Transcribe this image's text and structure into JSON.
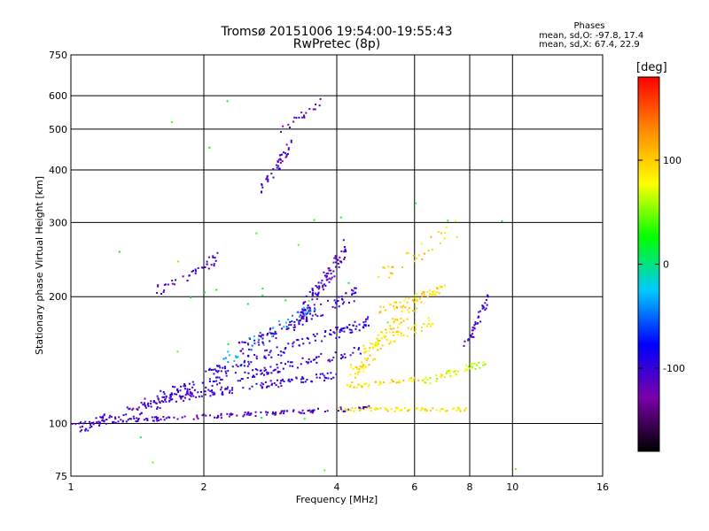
{
  "chart_data": {
    "type": "scatter",
    "title": "Tromsø 20151006 19:54:00-19:55:43",
    "subtitle": "RwPretec (8p)",
    "xlabel": "Frequency [MHz]",
    "ylabel": "Stationary phase Virtual Height [km]",
    "x_scale": "log",
    "y_scale": "log",
    "xlim": [
      1,
      16
    ],
    "ylim": [
      75,
      750
    ],
    "x_ticks": [
      1,
      2,
      4,
      6,
      8,
      10,
      16
    ],
    "x_tick_labels": [
      "1",
      "2",
      "4",
      "6",
      "8",
      "10",
      "16"
    ],
    "y_ticks": [
      75,
      100,
      200,
      300,
      400,
      500,
      600,
      750
    ],
    "y_tick_labels": [
      "75",
      "100",
      "200",
      "300",
      "400",
      "500",
      "600",
      "750"
    ],
    "grid": true,
    "colorbar": {
      "label": "[deg]",
      "range": [
        -180,
        180
      ],
      "ticks": [
        -100,
        0,
        100
      ],
      "tick_labels": [
        "-100",
        "0",
        "100"
      ],
      "colors": [
        "#000000",
        "#7a00a8",
        "#0000ff",
        "#00c8ff",
        "#00ff00",
        "#ffff00",
        "#ff8c00",
        "#ff0000"
      ]
    },
    "phase_stats": {
      "header": "Phases",
      "o_line": "mean, sd,O: -97.8, 17.4",
      "x_line": "mean, sd,X:  67.4, 22.9"
    },
    "traces": [
      {
        "f": [
          1.0,
          4.8
        ],
        "h": [
          100,
          109
        ],
        "phase": -110,
        "n": 150,
        "spread": 0.012
      },
      {
        "f": [
          1.05,
          1.9
        ],
        "h": [
          98,
          118
        ],
        "phase": -105,
        "n": 90,
        "spread": 0.03
      },
      {
        "f": [
          4.0,
          8.0
        ],
        "h": [
          108,
          108
        ],
        "phase": 90,
        "n": 70,
        "spread": 0.01
      },
      {
        "f": [
          1.4,
          4.0
        ],
        "h": [
          112,
          130
        ],
        "phase": -100,
        "n": 120,
        "spread": 0.02
      },
      {
        "f": [
          1.6,
          4.6
        ],
        "h": [
          118,
          150
        ],
        "phase": -100,
        "n": 120,
        "spread": 0.025
      },
      {
        "f": [
          2.0,
          4.8
        ],
        "h": [
          130,
          175
        ],
        "phase": -95,
        "n": 120,
        "spread": 0.03
      },
      {
        "f": [
          2.4,
          4.5
        ],
        "h": [
          150,
          205
        ],
        "phase": -100,
        "n": 110,
        "spread": 0.035
      },
      {
        "f": [
          3.3,
          4.2
        ],
        "h": [
          180,
          260
        ],
        "phase": -110,
        "n": 100,
        "spread": 0.05
      },
      {
        "f": [
          2.2,
          3.6
        ],
        "h": [
          140,
          190
        ],
        "phase": -40,
        "n": 40,
        "spread": 0.04
      },
      {
        "f": [
          4.3,
          6.2
        ],
        "h": [
          130,
          200
        ],
        "phase": 95,
        "n": 90,
        "spread": 0.05
      },
      {
        "f": [
          5.0,
          7.0
        ],
        "h": [
          185,
          210
        ],
        "phase": 100,
        "n": 50,
        "spread": 0.02
      },
      {
        "f": [
          4.6,
          6.6
        ],
        "h": [
          150,
          175
        ],
        "phase": 85,
        "n": 50,
        "spread": 0.03
      },
      {
        "f": [
          6.2,
          8.8
        ],
        "h": [
          125,
          140
        ],
        "phase": 70,
        "n": 50,
        "spread": 0.02
      },
      {
        "f": [
          4.2,
          6.2
        ],
        "h": [
          122,
          128
        ],
        "phase": 90,
        "n": 40,
        "spread": 0.01
      },
      {
        "f": [
          7.8,
          8.8
        ],
        "h": [
          150,
          200
        ],
        "phase": -110,
        "n": 40,
        "spread": 0.03
      },
      {
        "f": [
          1.55,
          2.2
        ],
        "h": [
          205,
          250
        ],
        "phase": -105,
        "n": 40,
        "spread": 0.03
      },
      {
        "f": [
          2.7,
          3.2
        ],
        "h": [
          360,
          470
        ],
        "phase": -110,
        "n": 40,
        "spread": 0.03
      },
      {
        "f": [
          3.0,
          3.7
        ],
        "h": [
          500,
          580
        ],
        "phase": -115,
        "n": 20,
        "spread": 0.02
      },
      {
        "f": [
          5.0,
          7.5
        ],
        "h": [
          220,
          290
        ],
        "phase": 100,
        "n": 30,
        "spread": 0.05
      },
      {
        "f": [
          1.2,
          9.5
        ],
        "h": [
          78,
          600
        ],
        "phase": 30,
        "n": 30,
        "spread": 0.3
      }
    ]
  }
}
